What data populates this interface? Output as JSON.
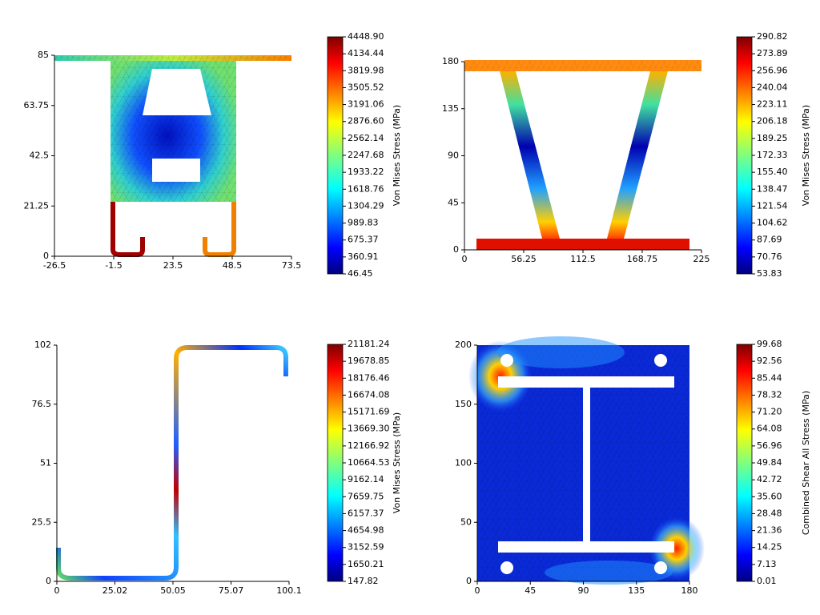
{
  "chart_data": [
    {
      "type": "contour",
      "xlim": [
        -26.5,
        73.5
      ],
      "xticks": [
        -26.5,
        -1.5,
        23.5,
        48.5,
        73.5
      ],
      "ylim": [
        0,
        85
      ],
      "yticks": [
        0,
        21.25,
        42.5,
        63.75,
        85
      ],
      "colorbar": {
        "label": "Von Mises Stress (MPa)",
        "clim": [
          46.45,
          4448.9
        ],
        "ticks": [
          {
            "value": 4448.9,
            "label": "4448.90"
          },
          4134.44,
          3819.98,
          3505.52,
          3191.06,
          {
            "value": 2876.6,
            "label": "2876.60"
          },
          2562.14,
          2247.68,
          1933.22,
          1618.76,
          1304.29,
          989.83,
          675.37,
          360.91,
          46.45
        ]
      }
    },
    {
      "type": "contour",
      "xlim": [
        0,
        225
      ],
      "xticks": [
        0,
        56.25,
        112.5,
        168.75,
        225
      ],
      "ylim": [
        0,
        180
      ],
      "yticks": [
        0,
        45,
        90,
        135,
        180
      ],
      "colorbar": {
        "label": "Von Mises Stress (MPa)",
        "clim": [
          53.83,
          290.82
        ],
        "ticks": [
          290.82,
          273.89,
          256.96,
          240.04,
          223.11,
          206.18,
          189.25,
          172.33,
          {
            "value": 155.4,
            "label": "155.40"
          },
          138.47,
          121.54,
          104.62,
          87.69,
          70.76,
          53.83
        ]
      }
    },
    {
      "type": "contour",
      "xlim": [
        0,
        100.1
      ],
      "xticks": [
        0,
        25.02,
        50.05,
        75.07,
        100.1
      ],
      "ylim": [
        0,
        102
      ],
      "yticks": [
        0,
        25.5,
        51,
        76.5,
        102
      ],
      "colorbar": {
        "label": "Von Mises Stress (MPa)",
        "clim": [
          147.82,
          21181.24
        ],
        "ticks": [
          21181.24,
          19678.85,
          18176.46,
          16674.08,
          15171.69,
          {
            "value": 13669.3,
            "label": "13669.30"
          },
          12166.92,
          10664.53,
          9162.14,
          7659.75,
          6157.37,
          4654.98,
          3152.59,
          1650.21,
          147.82
        ]
      }
    },
    {
      "type": "contour",
      "xlim": [
        0,
        180
      ],
      "xticks": [
        0,
        45,
        90,
        135,
        180
      ],
      "ylim": [
        0,
        200
      ],
      "yticks": [
        0,
        50,
        100,
        150,
        200
      ],
      "colorbar": {
        "label": "Combined Shear All Stress (MPa)",
        "clim": [
          0.01,
          99.68
        ],
        "ticks": [
          99.68,
          92.56,
          85.44,
          78.32,
          {
            "value": 71.2,
            "label": "71.20"
          },
          64.08,
          56.96,
          49.84,
          42.72,
          {
            "value": 35.6,
            "label": "35.60"
          },
          28.48,
          21.36,
          14.25,
          7.13,
          0.01
        ]
      }
    }
  ]
}
